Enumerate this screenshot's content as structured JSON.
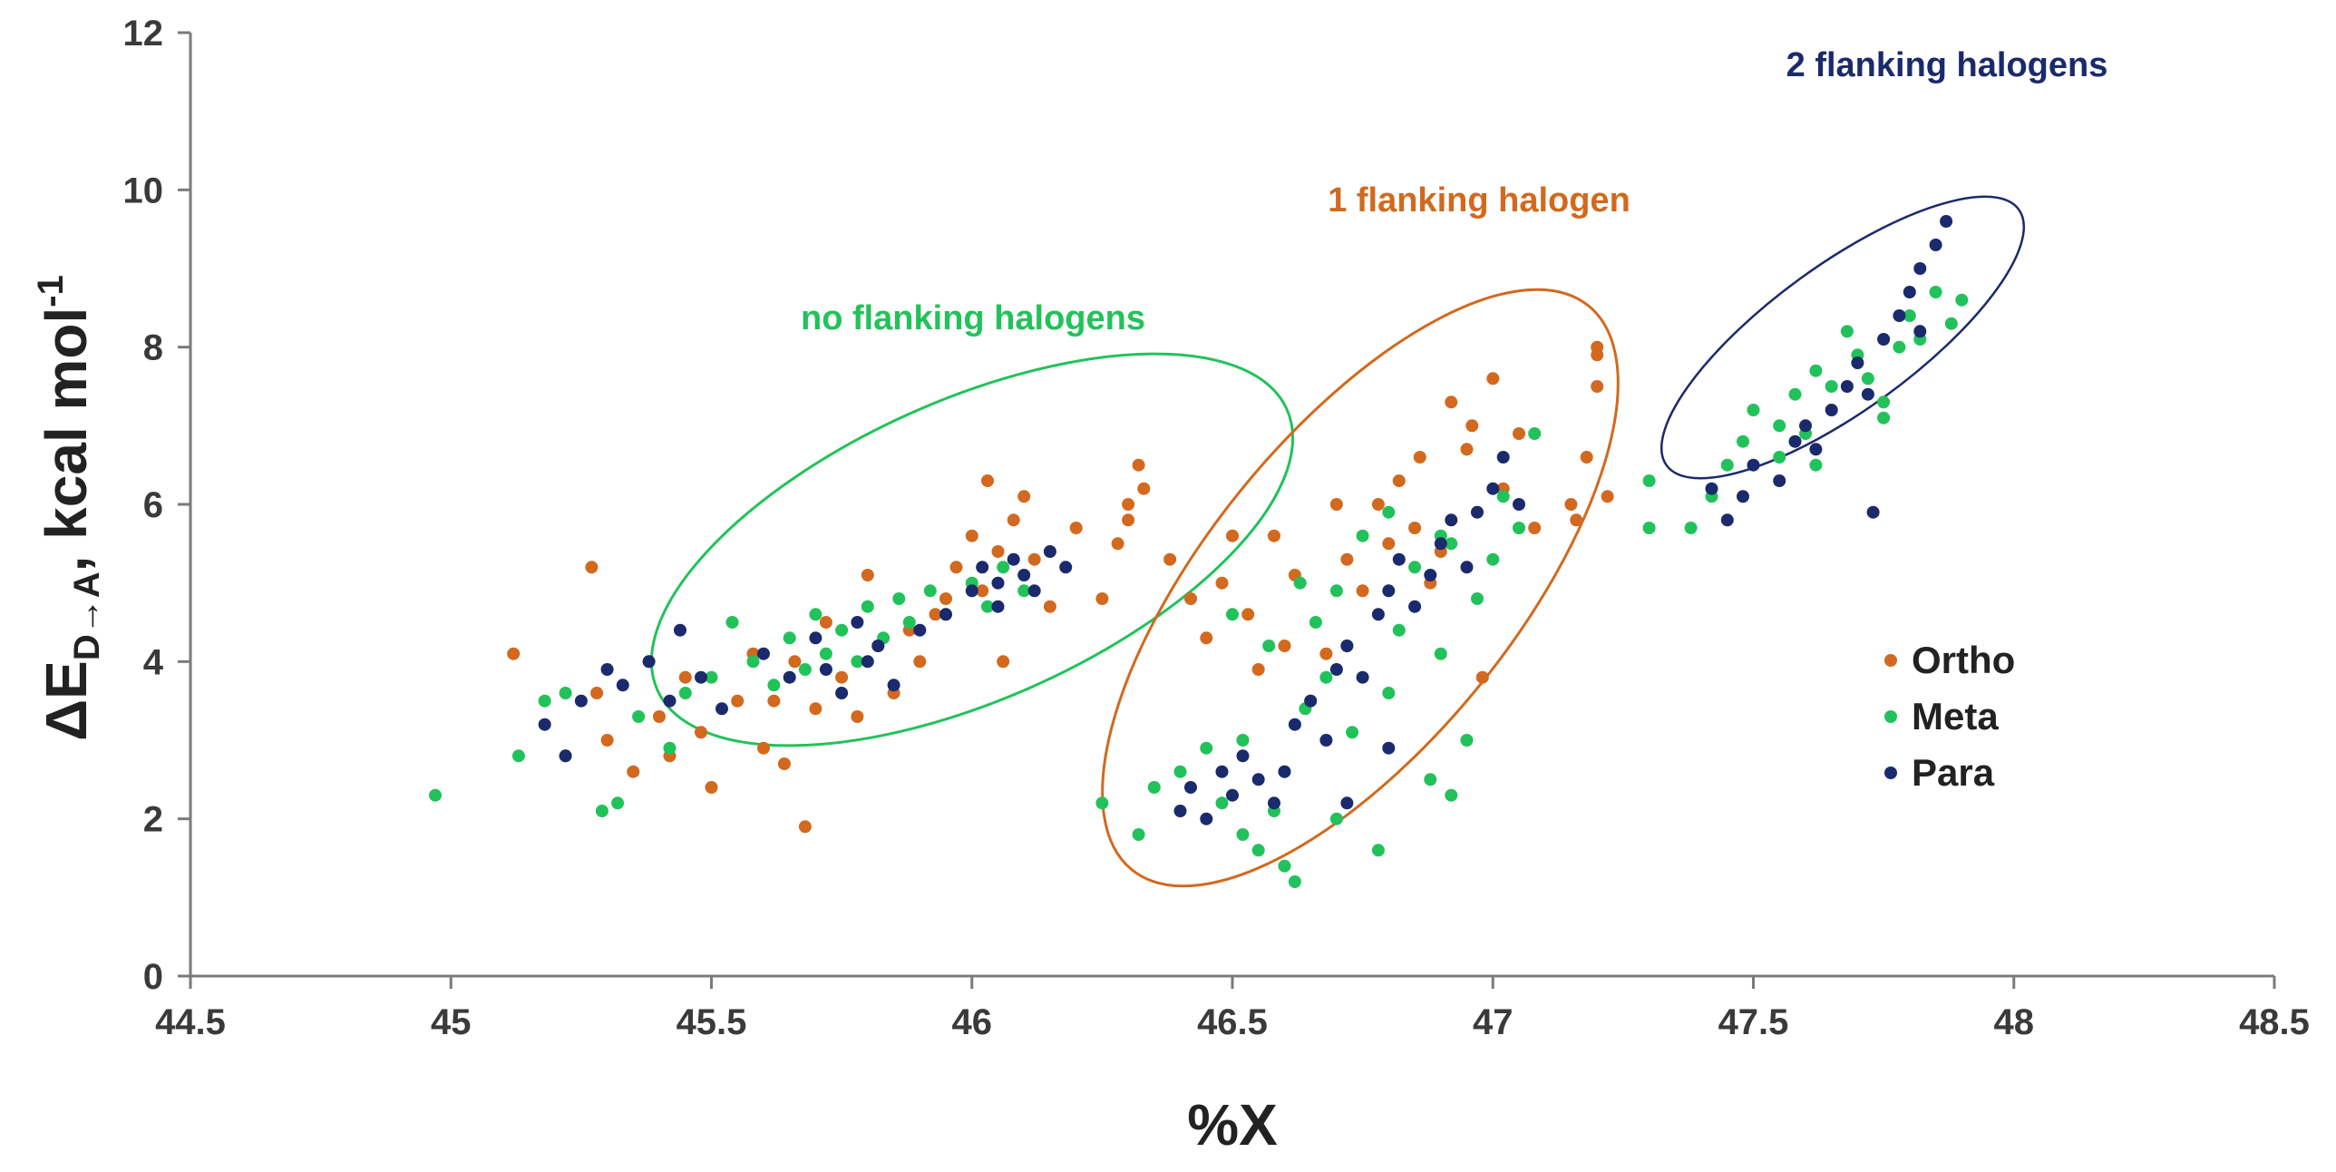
{
  "chart_data": {
    "type": "scatter",
    "title": "",
    "xlabel": "%X",
    "ylabel": {
      "prefix": "ΔE",
      "subscript": "D→A",
      "suffix": ", kcal mol",
      "superscript": "-1"
    },
    "xlim": [
      44.5,
      48.5
    ],
    "ylim": [
      0,
      12
    ],
    "xticks": [
      "44.5",
      "45",
      "45.5",
      "46",
      "46.5",
      "47",
      "47.5",
      "48",
      "48.5"
    ],
    "yticks": [
      "0",
      "2",
      "4",
      "6",
      "8",
      "10",
      "12"
    ],
    "grid": false,
    "legend_position": "right",
    "colors": {
      "Ortho": "#d2691e",
      "Meta": "#22c25a",
      "Para": "#1a2a6c"
    },
    "series": [
      {
        "name": "Ortho",
        "points": [
          [
            45.12,
            4.1
          ],
          [
            45.27,
            5.2
          ],
          [
            45.22,
            2.8
          ],
          [
            45.3,
            3.0
          ],
          [
            45.28,
            3.6
          ],
          [
            45.35,
            2.6
          ],
          [
            45.4,
            3.3
          ],
          [
            45.42,
            2.8
          ],
          [
            45.45,
            3.8
          ],
          [
            45.48,
            3.1
          ],
          [
            45.5,
            2.4
          ],
          [
            45.55,
            3.5
          ],
          [
            45.58,
            4.1
          ],
          [
            45.6,
            2.9
          ],
          [
            45.62,
            3.5
          ],
          [
            45.64,
            2.7
          ],
          [
            45.66,
            4.0
          ],
          [
            45.68,
            1.9
          ],
          [
            45.7,
            3.4
          ],
          [
            45.72,
            4.5
          ],
          [
            45.75,
            3.8
          ],
          [
            45.78,
            3.3
          ],
          [
            45.8,
            5.1
          ],
          [
            45.82,
            4.2
          ],
          [
            45.85,
            3.6
          ],
          [
            45.88,
            4.4
          ],
          [
            45.9,
            4.0
          ],
          [
            45.93,
            4.6
          ],
          [
            45.95,
            4.8
          ],
          [
            45.97,
            5.2
          ],
          [
            46.0,
            5.6
          ],
          [
            46.02,
            4.9
          ],
          [
            46.03,
            6.3
          ],
          [
            46.05,
            5.4
          ],
          [
            46.06,
            4.0
          ],
          [
            46.08,
            5.8
          ],
          [
            46.1,
            6.1
          ],
          [
            46.12,
            5.3
          ],
          [
            46.15,
            4.7
          ],
          [
            46.25,
            4.8
          ],
          [
            46.28,
            5.5
          ],
          [
            46.3,
            6.0
          ],
          [
            46.32,
            6.5
          ],
          [
            46.33,
            6.2
          ],
          [
            46.3,
            5.8
          ],
          [
            46.2,
            5.7
          ],
          [
            46.38,
            5.3
          ],
          [
            46.42,
            4.8
          ],
          [
            46.45,
            4.3
          ],
          [
            46.48,
            5.0
          ],
          [
            46.5,
            5.6
          ],
          [
            46.53,
            4.6
          ],
          [
            46.55,
            3.9
          ],
          [
            46.58,
            5.6
          ],
          [
            46.6,
            4.2
          ],
          [
            46.62,
            5.1
          ],
          [
            46.65,
            3.5
          ],
          [
            46.68,
            4.1
          ],
          [
            46.7,
            6.0
          ],
          [
            46.72,
            5.3
          ],
          [
            46.75,
            4.9
          ],
          [
            46.78,
            6.0
          ],
          [
            46.8,
            5.5
          ],
          [
            46.82,
            6.3
          ],
          [
            46.85,
            5.7
          ],
          [
            46.88,
            5.0
          ],
          [
            46.9,
            5.4
          ],
          [
            46.92,
            7.3
          ],
          [
            46.95,
            6.7
          ],
          [
            46.97,
            5.9
          ],
          [
            46.98,
            3.8
          ],
          [
            47.0,
            7.6
          ],
          [
            47.02,
            6.2
          ],
          [
            47.05,
            6.9
          ],
          [
            47.08,
            5.7
          ],
          [
            47.15,
            6.0
          ],
          [
            47.18,
            6.6
          ],
          [
            47.2,
            7.5
          ],
          [
            47.2,
            8.0
          ],
          [
            47.22,
            6.1
          ],
          [
            47.2,
            7.9
          ],
          [
            47.16,
            5.8
          ],
          [
            46.96,
            7.0
          ],
          [
            46.86,
            6.6
          ]
        ]
      },
      {
        "name": "Meta",
        "points": [
          [
            44.97,
            2.3
          ],
          [
            45.13,
            2.8
          ],
          [
            45.18,
            3.5
          ],
          [
            45.22,
            3.6
          ],
          [
            45.29,
            2.1
          ],
          [
            45.32,
            2.2
          ],
          [
            45.36,
            3.3
          ],
          [
            45.38,
            4.0
          ],
          [
            45.42,
            2.9
          ],
          [
            45.45,
            3.6
          ],
          [
            45.5,
            3.8
          ],
          [
            45.54,
            4.5
          ],
          [
            45.58,
            4.0
          ],
          [
            45.62,
            3.7
          ],
          [
            45.65,
            4.3
          ],
          [
            45.68,
            3.9
          ],
          [
            45.7,
            4.6
          ],
          [
            45.72,
            4.1
          ],
          [
            45.75,
            4.4
          ],
          [
            45.78,
            4.0
          ],
          [
            45.8,
            4.7
          ],
          [
            45.83,
            4.3
          ],
          [
            45.86,
            4.8
          ],
          [
            45.88,
            4.5
          ],
          [
            45.92,
            4.9
          ],
          [
            45.95,
            4.6
          ],
          [
            46.0,
            5.0
          ],
          [
            46.03,
            4.7
          ],
          [
            46.06,
            5.2
          ],
          [
            46.1,
            4.9
          ],
          [
            46.25,
            2.2
          ],
          [
            46.32,
            1.8
          ],
          [
            46.35,
            2.4
          ],
          [
            46.4,
            2.6
          ],
          [
            46.45,
            2.9
          ],
          [
            46.48,
            2.2
          ],
          [
            46.5,
            4.6
          ],
          [
            46.52,
            3.0
          ],
          [
            46.55,
            1.6
          ],
          [
            46.58,
            2.1
          ],
          [
            46.6,
            1.4
          ],
          [
            46.62,
            1.2
          ],
          [
            46.64,
            3.4
          ],
          [
            46.66,
            4.5
          ],
          [
            46.68,
            3.8
          ],
          [
            46.7,
            4.9
          ],
          [
            46.72,
            4.2
          ],
          [
            46.75,
            5.6
          ],
          [
            46.78,
            1.6
          ],
          [
            46.8,
            3.6
          ],
          [
            46.82,
            4.4
          ],
          [
            46.85,
            5.2
          ],
          [
            46.88,
            2.5
          ],
          [
            46.9,
            4.1
          ],
          [
            46.92,
            5.5
          ],
          [
            46.95,
            3.0
          ],
          [
            46.97,
            4.8
          ],
          [
            47.0,
            5.3
          ],
          [
            47.02,
            6.1
          ],
          [
            47.05,
            5.7
          ],
          [
            47.08,
            6.9
          ],
          [
            46.92,
            2.3
          ],
          [
            46.7,
            2.0
          ],
          [
            46.6,
            2.6
          ],
          [
            46.52,
            1.8
          ],
          [
            46.57,
            4.2
          ],
          [
            46.63,
            5.0
          ],
          [
            46.73,
            3.1
          ],
          [
            46.8,
            5.9
          ],
          [
            46.9,
            5.6
          ],
          [
            47.3,
            6.3
          ],
          [
            47.3,
            5.7
          ],
          [
            47.38,
            5.7
          ],
          [
            47.42,
            6.1
          ],
          [
            47.45,
            6.5
          ],
          [
            47.48,
            6.8
          ],
          [
            47.5,
            7.2
          ],
          [
            47.55,
            7.0
          ],
          [
            47.58,
            7.4
          ],
          [
            47.6,
            6.9
          ],
          [
            47.62,
            7.7
          ],
          [
            47.65,
            7.5
          ],
          [
            47.68,
            8.2
          ],
          [
            47.7,
            7.9
          ],
          [
            47.72,
            7.6
          ],
          [
            47.75,
            7.3
          ],
          [
            47.78,
            8.0
          ],
          [
            47.8,
            8.4
          ],
          [
            47.82,
            8.1
          ],
          [
            47.85,
            8.7
          ],
          [
            47.88,
            8.3
          ],
          [
            47.9,
            8.6
          ],
          [
            47.55,
            6.6
          ],
          [
            47.62,
            6.5
          ],
          [
            47.75,
            7.1
          ]
        ]
      },
      {
        "name": "Para",
        "points": [
          [
            45.18,
            3.2
          ],
          [
            45.22,
            2.8
          ],
          [
            45.25,
            3.5
          ],
          [
            45.3,
            3.9
          ],
          [
            45.33,
            3.7
          ],
          [
            45.38,
            4.0
          ],
          [
            45.42,
            3.5
          ],
          [
            45.44,
            4.4
          ],
          [
            45.48,
            3.8
          ],
          [
            45.52,
            3.4
          ],
          [
            45.6,
            4.1
          ],
          [
            45.65,
            3.8
          ],
          [
            45.7,
            4.3
          ],
          [
            45.72,
            3.9
          ],
          [
            45.75,
            3.6
          ],
          [
            45.78,
            4.5
          ],
          [
            45.8,
            4.0
          ],
          [
            45.82,
            4.2
          ],
          [
            45.85,
            3.7
          ],
          [
            45.9,
            4.4
          ],
          [
            45.95,
            4.6
          ],
          [
            46.0,
            4.9
          ],
          [
            46.02,
            5.2
          ],
          [
            46.05,
            5.0
          ],
          [
            46.08,
            5.3
          ],
          [
            46.1,
            5.1
          ],
          [
            46.12,
            4.9
          ],
          [
            46.15,
            5.4
          ],
          [
            46.18,
            5.2
          ],
          [
            46.05,
            4.7
          ],
          [
            46.4,
            2.1
          ],
          [
            46.42,
            2.4
          ],
          [
            46.45,
            2.0
          ],
          [
            46.48,
            2.6
          ],
          [
            46.5,
            2.3
          ],
          [
            46.52,
            2.8
          ],
          [
            46.55,
            2.5
          ],
          [
            46.58,
            2.2
          ],
          [
            46.6,
            2.6
          ],
          [
            46.62,
            3.2
          ],
          [
            46.65,
            3.5
          ],
          [
            46.68,
            3.0
          ],
          [
            46.7,
            3.9
          ],
          [
            46.72,
            4.2
          ],
          [
            46.75,
            3.8
          ],
          [
            46.78,
            4.6
          ],
          [
            46.8,
            4.9
          ],
          [
            46.82,
            5.3
          ],
          [
            46.85,
            4.7
          ],
          [
            46.88,
            5.1
          ],
          [
            46.9,
            5.5
          ],
          [
            46.92,
            5.8
          ],
          [
            46.95,
            5.2
          ],
          [
            46.97,
            5.9
          ],
          [
            47.0,
            6.2
          ],
          [
            47.02,
            6.6
          ],
          [
            47.05,
            6.0
          ],
          [
            46.72,
            2.2
          ],
          [
            46.8,
            2.9
          ],
          [
            47.42,
            6.2
          ],
          [
            47.45,
            5.8
          ],
          [
            47.48,
            6.1
          ],
          [
            47.5,
            6.5
          ],
          [
            47.55,
            6.3
          ],
          [
            47.58,
            6.8
          ],
          [
            47.6,
            7.0
          ],
          [
            47.62,
            6.7
          ],
          [
            47.65,
            7.2
          ],
          [
            47.68,
            7.5
          ],
          [
            47.7,
            7.8
          ],
          [
            47.72,
            7.4
          ],
          [
            47.75,
            8.1
          ],
          [
            47.78,
            8.4
          ],
          [
            47.8,
            8.7
          ],
          [
            47.82,
            9.0
          ],
          [
            47.85,
            9.3
          ],
          [
            47.87,
            9.6
          ],
          [
            47.73,
            5.9
          ],
          [
            47.82,
            8.2
          ]
        ]
      }
    ],
    "annotations": [
      {
        "text": "no flanking halogens",
        "color": "#22c25a"
      },
      {
        "text": "1 flanking halogen",
        "color": "#d2691e"
      },
      {
        "text": "2 flanking halogens",
        "color": "#1a2a6c"
      }
    ]
  }
}
